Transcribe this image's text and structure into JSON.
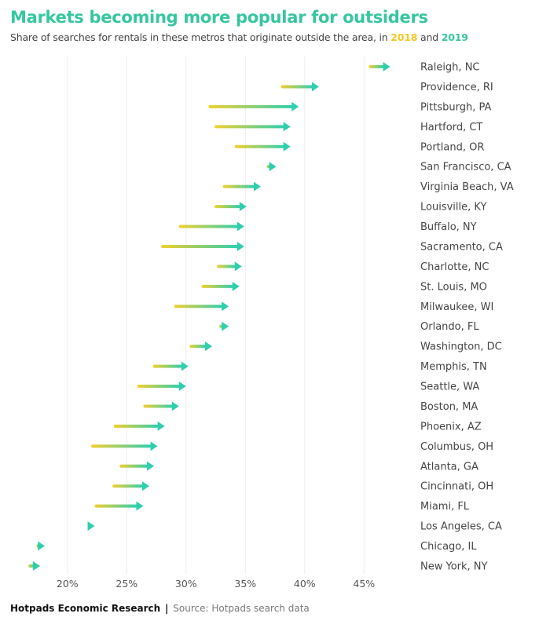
{
  "header": {
    "title": "Markets becoming more popular for outsiders",
    "subtitle_prefix": "Share of searches for rentals in these metros that originate outside the area, in ",
    "year_a": "2018",
    "subtitle_mid": " and ",
    "year_b": "2019"
  },
  "footer": {
    "org": "Hotpads Economic Research",
    "separator": "|",
    "source": "Source: Hotpads search data"
  },
  "colors": {
    "title": "#35c6a0",
    "start_2018": "#f4cf2c",
    "end_2019": "#2ecfae",
    "grid": "#ececec",
    "label": "#444444"
  },
  "chart_data": {
    "type": "arrow",
    "title": "Markets becoming more popular for outsiders",
    "subtitle": "Share of searches for rentals in these metros that originate outside the area, in 2018 and 2019",
    "xlabel": "",
    "ylabel": "",
    "xlim": [
      16,
      47.5
    ],
    "x_ticks": [
      20,
      25,
      30,
      35,
      40,
      45
    ],
    "x_tick_labels": [
      "20%",
      "25%",
      "30%",
      "35%",
      "40%",
      "45%"
    ],
    "grid": "vertical",
    "legend": "inline-subtitle",
    "series": [
      {
        "name": "2018",
        "role": "arrow-start"
      },
      {
        "name": "2019",
        "role": "arrow-end"
      }
    ],
    "categories": [
      "Raleigh, NC",
      "Providence, RI",
      "Pittsburgh, PA",
      "Hartford, CT",
      "Portland, OR",
      "San Francisco, CA",
      "Virginia Beach, VA",
      "Louisville, KY",
      "Buffalo, NY",
      "Sacramento, CA",
      "Charlotte, NC",
      "St. Louis, MO",
      "Milwaukee, WI",
      "Orlando, FL",
      "Washington, DC",
      "Memphis, TN",
      "Seattle, WA",
      "Boston, MA",
      "Phoenix, AZ",
      "Columbus, OH",
      "Atlanta, GA",
      "Cincinnati, OH",
      "Miami, FL",
      "Los Angeles, CA",
      "Chicago, IL",
      "New York, NY"
    ],
    "values_2018": [
      45.4,
      38.0,
      31.9,
      32.4,
      34.1,
      36.8,
      33.1,
      32.4,
      29.4,
      27.9,
      32.6,
      31.3,
      29.0,
      32.8,
      30.3,
      27.2,
      25.9,
      26.4,
      23.9,
      22.0,
      24.4,
      23.8,
      22.3,
      22.0,
      17.4,
      16.7
    ],
    "values_2019": [
      47.2,
      41.2,
      39.5,
      38.8,
      38.8,
      37.6,
      36.3,
      35.1,
      34.9,
      34.9,
      34.7,
      34.5,
      33.6,
      33.6,
      32.2,
      30.2,
      30.0,
      29.4,
      28.2,
      27.6,
      27.3,
      26.9,
      26.4,
      22.3,
      18.1,
      17.7
    ]
  }
}
